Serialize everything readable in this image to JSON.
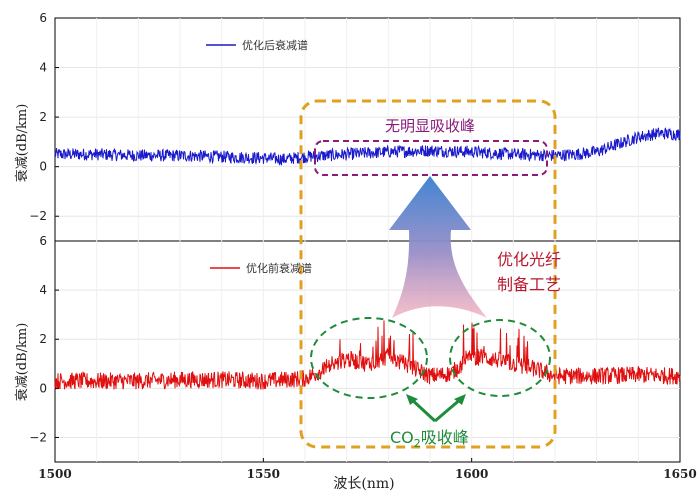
{
  "chart_data": [
    {
      "type": "line",
      "panel": "top",
      "ylabel": "衰减(dB/km)",
      "ylim": [
        -3,
        6
      ],
      "yticks": [
        -2,
        0,
        2,
        4,
        6
      ],
      "ytick_labels": [
        "−2",
        "0",
        "2",
        "4",
        "6"
      ],
      "xlim": [
        1500,
        1650
      ],
      "grid": true,
      "legend": "top-left",
      "series": [
        {
          "name": "优化后衰减谱",
          "color": "#1a1acc",
          "x": [
            1500,
            1510,
            1520,
            1530,
            1540,
            1550,
            1555,
            1560,
            1570,
            1580,
            1590,
            1600,
            1610,
            1620,
            1625,
            1630,
            1635,
            1640,
            1645,
            1650
          ],
          "y": [
            0.5,
            0.5,
            0.45,
            0.45,
            0.4,
            0.35,
            0.3,
            0.4,
            0.5,
            0.6,
            0.65,
            0.6,
            0.5,
            0.45,
            0.5,
            0.6,
            0.9,
            1.2,
            1.35,
            1.3
          ],
          "noise_amplitude": 0.25
        }
      ],
      "annotations": [
        {
          "text": "无明显吸收峰",
          "color": "#8b1a7a",
          "region_x": [
            1562,
            1623
          ],
          "region_y": [
            -0.25,
            1.05
          ],
          "style": "dashed-box"
        }
      ]
    },
    {
      "type": "line",
      "panel": "bottom",
      "ylabel": "衰减(dB/km)",
      "xlabel": "波长(nm)",
      "ylim": [
        -3,
        6
      ],
      "yticks": [
        -2,
        0,
        2,
        4,
        6
      ],
      "ytick_labels": [
        "−2",
        "0",
        "2",
        "4",
        "6"
      ],
      "xlim": [
        1500,
        1650
      ],
      "xticks": [
        1500,
        1550,
        1600,
        1650
      ],
      "xtick_labels": [
        "1500",
        "1550",
        "1600",
        "1650"
      ],
      "grid": true,
      "legend": "top-left",
      "series": [
        {
          "name": "优化前衰减谱",
          "color": "#e01010",
          "x": [
            1500,
            1510,
            1520,
            1530,
            1540,
            1550,
            1560,
            1565,
            1570,
            1575,
            1580,
            1585,
            1590,
            1595,
            1600,
            1605,
            1610,
            1615,
            1620,
            1630,
            1640,
            1650
          ],
          "y": [
            0.3,
            0.3,
            0.3,
            0.35,
            0.35,
            0.3,
            0.4,
            0.8,
            1.2,
            1.0,
            1.3,
            0.9,
            0.5,
            0.6,
            1.3,
            1.2,
            1.0,
            0.8,
            0.5,
            0.5,
            0.55,
            0.5
          ],
          "noise_amplitude": 0.35
        }
      ],
      "annotations": [
        {
          "text": "CO",
          "subscript": "2",
          "suffix": "吸收峰",
          "color": "#1e8c3a",
          "ellipses_x": [
            1574,
            1608
          ],
          "style": "dashed-ellipse"
        }
      ]
    }
  ],
  "overlay": {
    "process_label_line1": "优化光纤",
    "process_label_line2": "制备工艺",
    "process_color": "#b8192e",
    "box_color": "#e0a020",
    "arrow_top_color": "#3a7fd0",
    "arrow_bottom_color": "#f0a0b0"
  }
}
